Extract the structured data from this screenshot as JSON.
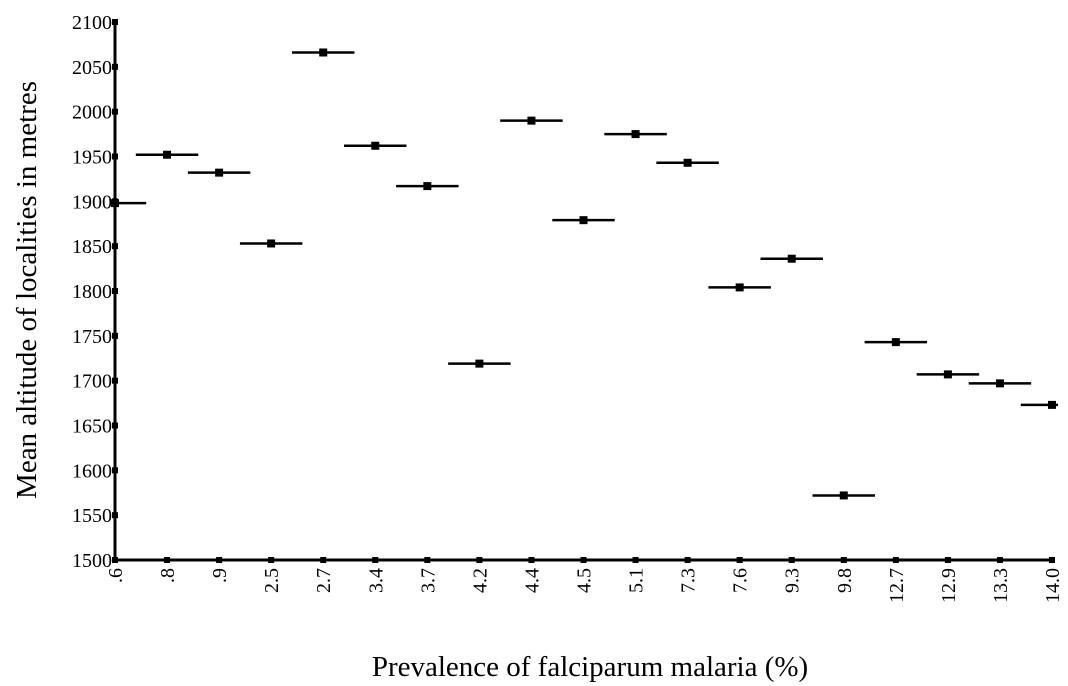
{
  "chart_data": {
    "type": "scatter",
    "title": "",
    "xlabel": "Prevalence of falciparum malaria (%)",
    "ylabel": "Mean altitude of localities in metres",
    "categories": [
      ".6",
      ".8",
      ".9",
      "2.5",
      "2.7",
      "3.4",
      "3.7",
      "4.2",
      "4.4",
      "4.5",
      "5.1",
      "7.3",
      "7.6",
      "9.3",
      "9.8",
      "12.7",
      "12.9",
      "13.3",
      "14.0"
    ],
    "values": [
      1898,
      1952,
      1932,
      1853,
      2066,
      1962,
      1917,
      1719,
      1990,
      1879,
      1975,
      1943,
      1804,
      1836,
      1572,
      1743,
      1707,
      1697,
      1673
    ],
    "ylim": [
      1500,
      2100
    ],
    "yticks": [
      1500,
      1550,
      1600,
      1650,
      1700,
      1750,
      1800,
      1850,
      1900,
      1950,
      2000,
      2050,
      2100
    ],
    "grid": false,
    "marker": "square with horizontal bar",
    "color": "#000000"
  }
}
